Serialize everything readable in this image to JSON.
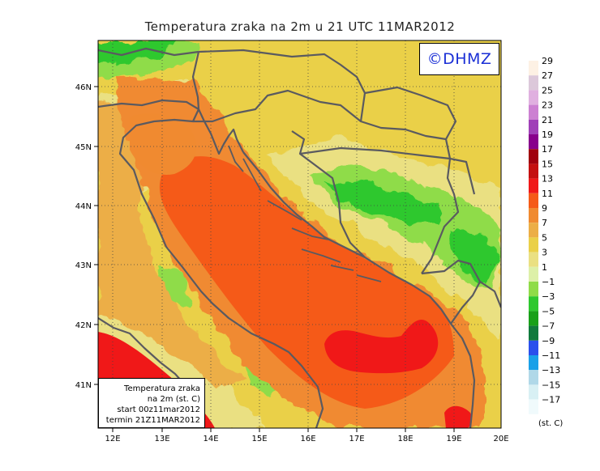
{
  "title": "Temperatura zraka na 2m u 21 UTC 11MAR2012",
  "logo_text": "©DHMZ",
  "info_box": {
    "line1": "Temperatura zraka",
    "line2": "na 2m (st. C)",
    "line3": "start 00z11mar2012",
    "line4": "termin 21Z11MAR2012"
  },
  "axes": {
    "lon_ticks": [
      "12E",
      "13E",
      "14E",
      "15E",
      "16E",
      "17E",
      "18E",
      "19E",
      "20E"
    ],
    "lat_ticks": [
      "46N",
      "45N",
      "44N",
      "43N",
      "42N",
      "41N"
    ],
    "lon_range": [
      11.8,
      20.0
    ],
    "lat_range": [
      40.25,
      46.75
    ],
    "gridlines": true
  },
  "legend": {
    "unit": "(st. C)",
    "levels": [
      {
        "label": "29",
        "color": "#fdf1e4"
      },
      {
        "label": "27",
        "color": "#dcc8da"
      },
      {
        "label": "25",
        "color": "#e0b0e0"
      },
      {
        "label": "23",
        "color": "#cc80d2"
      },
      {
        "label": "21",
        "color": "#a040b8"
      },
      {
        "label": "19",
        "color": "#88008c"
      },
      {
        "label": "17",
        "color": "#a0000e"
      },
      {
        "label": "15",
        "color": "#c41010"
      },
      {
        "label": "13",
        "color": "#f01818"
      },
      {
        "label": "11",
        "color": "#f55a18"
      },
      {
        "label": "9",
        "color": "#f08a30"
      },
      {
        "label": "7",
        "color": "#ecae46"
      },
      {
        "label": "5",
        "color": "#ead048"
      },
      {
        "label": "3",
        "color": "#eae082"
      },
      {
        "label": "1",
        "color": "#ddf0a8"
      },
      {
        "label": "−1",
        "color": "#8fdc48"
      },
      {
        "label": "−3",
        "color": "#2ec82e"
      },
      {
        "label": "−5",
        "color": "#18a018"
      },
      {
        "label": "−7",
        "color": "#107a3c"
      },
      {
        "label": "−9",
        "color": "#2a50ec"
      },
      {
        "label": "−11",
        "color": "#1aa0e8"
      },
      {
        "label": "−13",
        "color": "#b0d8e8"
      },
      {
        "label": "−15",
        "color": "#d8f0f4"
      },
      {
        "label": "−17",
        "color": "#f0fafc"
      }
    ]
  },
  "colors": {
    "coastline": "#5a5a60",
    "frame": "#000000"
  }
}
